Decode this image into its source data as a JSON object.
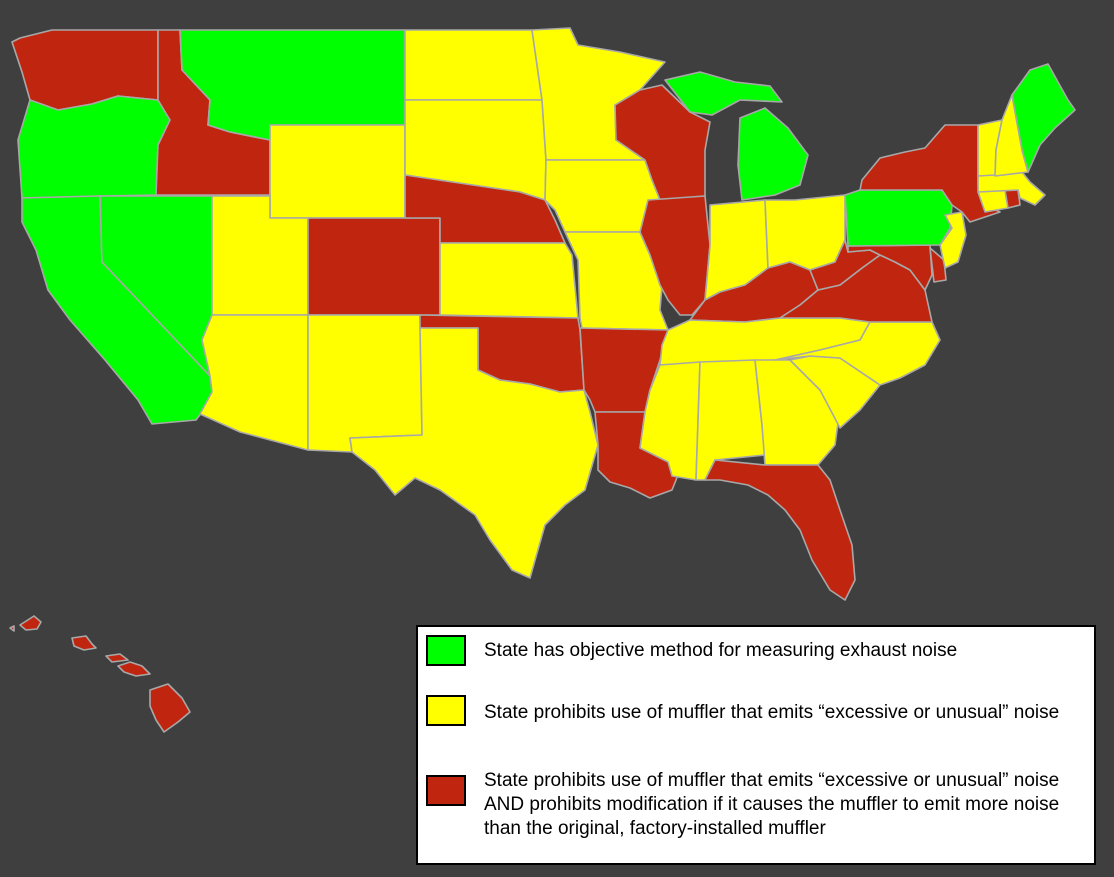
{
  "colors": {
    "background": "#3f3f3f",
    "objective": "#00ff00",
    "excessive": "#ffff00",
    "excessive_and_modification": "#c0250f",
    "border": "#a8a8a8"
  },
  "legend": {
    "items": [
      {
        "category": "objective",
        "text": "State has objective method for measuring exhaust noise"
      },
      {
        "category": "excessive",
        "text": "State prohibits use of muffler that emits “excessive or unusual” noise"
      },
      {
        "category": "excessive_and_modification",
        "text": "State prohibits use of muffler that emits “excessive or unusual” noise AND prohibits modification if it causes the muffler to emit more noise than the original, factory-installed muffler"
      }
    ]
  },
  "states": {
    "WA": "excessive_and_modification",
    "OR": "objective",
    "CA": "objective",
    "NV": "objective",
    "ID": "excessive_and_modification",
    "MT": "objective",
    "WY": "excessive",
    "UT": "excessive",
    "AZ": "excessive",
    "CO": "excessive_and_modification",
    "NM": "excessive",
    "ND": "excessive",
    "SD": "excessive",
    "NE": "excessive_and_modification",
    "KS": "excessive",
    "OK": "excessive_and_modification",
    "TX": "excessive",
    "MN": "excessive",
    "IA": "excessive",
    "MO": "excessive",
    "AR": "excessive_and_modification",
    "LA": "excessive_and_modification",
    "WI": "excessive_and_modification",
    "IL": "excessive_and_modification",
    "MI": "objective",
    "IN": "excessive",
    "OH": "excessive",
    "KY": "excessive_and_modification",
    "TN": "excessive",
    "MS": "excessive",
    "AL": "excessive",
    "GA": "excessive",
    "FL": "excessive_and_modification",
    "SC": "excessive",
    "NC": "excessive",
    "VA": "excessive_and_modification",
    "WV": "excessive_and_modification",
    "MD": "excessive_and_modification",
    "DE": "excessive_and_modification",
    "PA": "objective",
    "NJ": "excessive",
    "NY": "excessive_and_modification",
    "CT": "excessive",
    "RI": "excessive_and_modification",
    "MA": "excessive",
    "VT": "excessive",
    "NH": "excessive",
    "ME": "objective",
    "HI": "excessive_and_modification"
  }
}
